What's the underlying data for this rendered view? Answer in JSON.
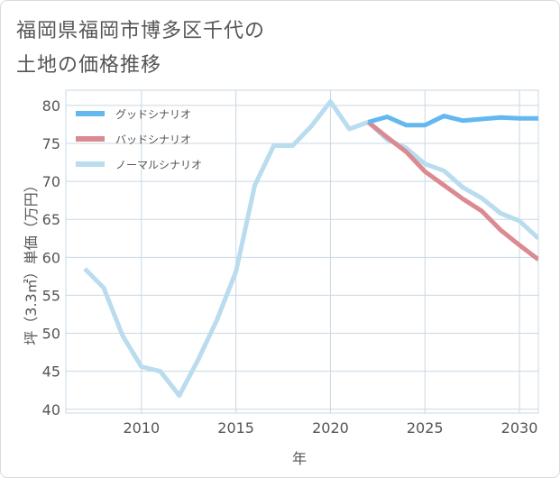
{
  "title": {
    "line1": "福岡県福岡市博多区千代の",
    "line2": "土地の価格推移"
  },
  "colors": {
    "good": "#63b8ef",
    "bad": "#db8a91",
    "normal": "#b9dcee",
    "grid": "#c9d8e4",
    "axis": "#555555"
  },
  "chart_data": {
    "type": "line",
    "xlabel": "年",
    "ylabel": "坪（3.3㎡）単価（万円）",
    "xlim": [
      2006,
      2031
    ],
    "ylim": [
      39.5,
      82
    ],
    "xticks": [
      2010,
      2015,
      2020,
      2025,
      2030
    ],
    "yticks": [
      40,
      45,
      50,
      55,
      60,
      65,
      70,
      75,
      80
    ],
    "grid": true,
    "legend_position": "top-left",
    "series": [
      {
        "name": "グッドシナリオ",
        "color": "#63b8ef",
        "x": [
          2022,
          2023,
          2024,
          2025,
          2026,
          2027,
          2028,
          2029,
          2030,
          2031
        ],
        "y": [
          77.8,
          78.5,
          77.4,
          77.4,
          78.6,
          78.0,
          78.2,
          78.4,
          78.3,
          78.3
        ]
      },
      {
        "name": "バッドシナリオ",
        "color": "#db8a91",
        "x": [
          2022,
          2023,
          2024,
          2025,
          2026,
          2027,
          2028,
          2029,
          2030,
          2031
        ],
        "y": [
          77.8,
          75.8,
          73.9,
          71.3,
          69.5,
          67.7,
          66.1,
          63.6,
          61.6,
          59.7
        ]
      },
      {
        "name": "ノーマルシナリオ",
        "color": "#b9dcee",
        "x": [
          2007,
          2008,
          2009,
          2010,
          2011,
          2012,
          2013,
          2014,
          2015,
          2016,
          2017,
          2018,
          2019,
          2020,
          2021,
          2022,
          2023,
          2024,
          2025,
          2026,
          2027,
          2028,
          2029,
          2030,
          2031
        ],
        "y": [
          58.5,
          56.0,
          49.7,
          45.6,
          45.0,
          41.8,
          46.5,
          51.8,
          58.1,
          69.5,
          74.7,
          74.7,
          77.3,
          80.5,
          76.9,
          77.8,
          75.5,
          74.4,
          72.3,
          71.4,
          69.2,
          67.8,
          65.8,
          64.8,
          62.5
        ]
      }
    ]
  }
}
